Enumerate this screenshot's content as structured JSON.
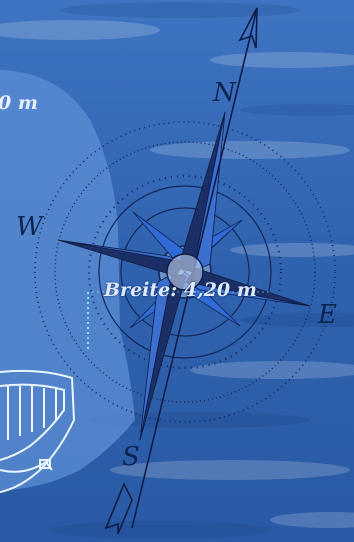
{
  "measurements": {
    "width_label": "Breite: 4,20 m",
    "length_label_fragment": "0 m"
  },
  "compass": {
    "north": "N",
    "east": "E",
    "south": "S",
    "west": "W"
  },
  "colors": {
    "ocean": "#2d5ea8",
    "ocean_light": "#4f86cf",
    "compass_dark": "#1a2c5e",
    "compass_mid": "#2f63c4",
    "boat_outline": "#eaf6ff",
    "dimension_line": "#8fe3ff"
  }
}
